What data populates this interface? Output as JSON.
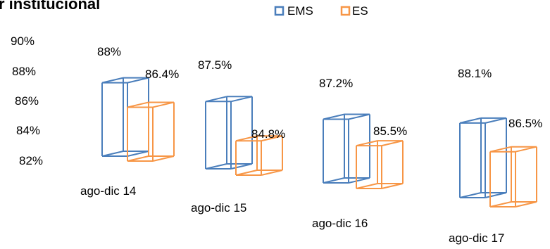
{
  "chart_data": {
    "type": "bar",
    "title": "r institucional",
    "categories": [
      "ago-dic 14",
      "ago-dic 15",
      "ago-dic 16",
      "ago-dic 17"
    ],
    "series": [
      {
        "name": "EMS",
        "color": "#4a7ebb",
        "values": [
          88,
          87.5,
          87.2,
          88.1
        ],
        "labels": [
          "88%",
          "87.5%",
          "87.2%",
          "88.1%"
        ]
      },
      {
        "name": "ES",
        "color": "#f79646",
        "values": [
          86.4,
          84.8,
          85.5,
          86.5
        ],
        "labels": [
          "86.4%",
          "84.8%",
          "85.5%",
          "86.5%"
        ]
      }
    ],
    "ylim": [
      82,
      90
    ],
    "yticks": [
      "90%",
      "88%",
      "86%",
      "84%",
      "82%"
    ],
    "legend": "top",
    "grid": false
  }
}
